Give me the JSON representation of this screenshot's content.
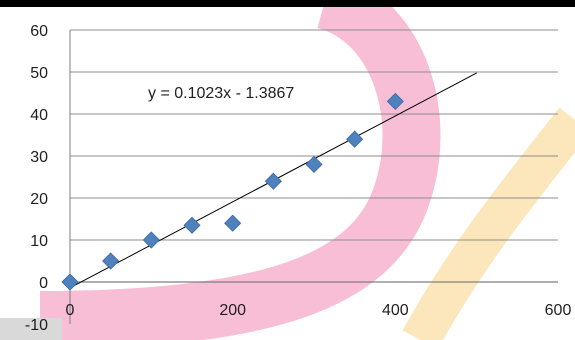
{
  "chart_data": {
    "type": "scatter",
    "title": "",
    "xlabel": "",
    "ylabel": "",
    "xlim": [
      0,
      600
    ],
    "ylim": [
      -10,
      60
    ],
    "x_ticks": [
      0,
      200,
      400,
      600
    ],
    "x_tick_labels": [
      "0",
      "200",
      "400",
      "600"
    ],
    "y_ticks": [
      -10,
      0,
      10,
      20,
      30,
      40,
      50,
      60
    ],
    "y_tick_labels": [
      "-10",
      "0",
      "10",
      "20",
      "30",
      "40",
      "50",
      "60"
    ],
    "grid": "horizontal",
    "legend": "none",
    "series": [
      {
        "marker": "diamond",
        "color": "#4f81bd",
        "x": [
          0,
          50,
          100,
          150,
          200,
          250,
          300,
          350,
          400
        ],
        "y": [
          0,
          5,
          10,
          13.5,
          14,
          24,
          28,
          34,
          43
        ]
      }
    ],
    "trendline": {
      "type": "linear",
      "slope": 0.1023,
      "intercept": -1.3867,
      "x_range": [
        0,
        500
      ],
      "color": "#000000",
      "equation": "y = 0.1023x - 1.3867"
    },
    "decorations": {
      "pink_band_color": "#f7b7d0",
      "yellow_band_color": "#fbe3b0"
    }
  }
}
